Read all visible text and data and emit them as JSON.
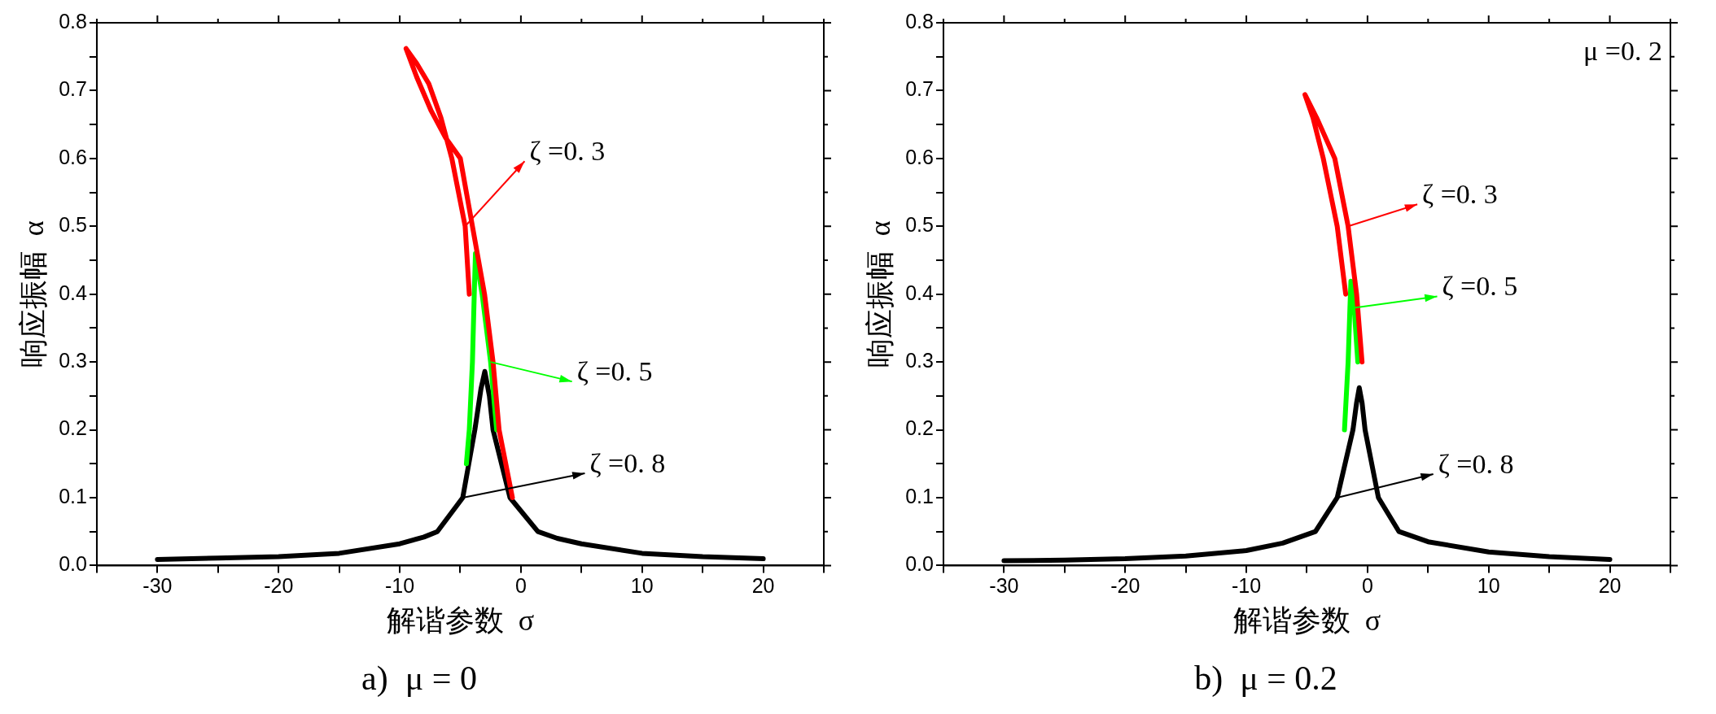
{
  "chart_data": [
    {
      "type": "line",
      "title": "a)  μ = 0",
      "xlabel": "解谐参数  σ",
      "ylabel": "响应振幅  α",
      "xlim": [
        -35,
        25
      ],
      "xticks": [
        {
          "value": -35,
          "label": null
        },
        -30,
        {
          "value": -25,
          "label": null
        },
        -20,
        {
          "value": -15,
          "label": null
        },
        -10,
        {
          "value": -5,
          "label": null
        },
        0,
        {
          "value": 5,
          "label": null
        },
        10,
        {
          "value": 15,
          "label": null
        },
        20,
        {
          "value": 25,
          "label": null
        }
      ],
      "ylim": [
        0,
        0.8
      ],
      "yticks": [
        {
          "value": 0,
          "label": "0.0"
        },
        {
          "value": 0.05,
          "label": null
        },
        0.1,
        {
          "value": 0.15,
          "label": null
        },
        0.2,
        {
          "value": 0.25,
          "label": null
        },
        0.3,
        {
          "value": 0.35,
          "label": null
        },
        0.4,
        {
          "value": 0.45,
          "label": null
        },
        0.5,
        {
          "value": 0.55,
          "label": null
        },
        0.6,
        {
          "value": 0.65,
          "label": null
        },
        0.7,
        {
          "value": 0.75,
          "label": null
        },
        0.8
      ],
      "grid": false,
      "legend": false,
      "marker": "none",
      "line_style": "solid",
      "series": [
        {
          "color": "#ff0000",
          "x": [
            -4.26,
            -4.6,
            -5.7,
            -6.6,
            -7.6,
            -8.6,
            -9.48,
            -8.6,
            -7.4,
            -6.2,
            -5.0,
            -4.0,
            -3.0,
            -2.3,
            -1.8,
            -0.7
          ],
          "values": [
            0.4,
            0.5,
            0.6,
            0.66,
            0.71,
            0.74,
            0.762,
            0.72,
            0.67,
            0.63,
            0.6,
            0.5,
            0.4,
            0.3,
            0.2,
            0.1
          ]
        },
        {
          "color": "#00ff00",
          "x": [
            -4.5,
            -4.26,
            -4.0,
            -3.85,
            -3.75,
            -3.2,
            -2.5,
            -2.0
          ],
          "values": [
            0.15,
            0.2,
            0.3,
            0.4,
            0.46,
            0.4,
            0.3,
            0.2
          ]
        },
        {
          "color": "#000000",
          "x": [
            -30,
            -25,
            -20,
            -15,
            -10,
            -8,
            -6.9,
            -4.8,
            -3.8,
            -3.3,
            -2.98,
            -2.6,
            -2.3,
            -0.9,
            1.4,
            3,
            5,
            10,
            15,
            20
          ],
          "values": [
            0.009,
            0.011,
            0.013,
            0.018,
            0.032,
            0.042,
            0.05,
            0.1,
            0.2,
            0.26,
            0.286,
            0.25,
            0.2,
            0.1,
            0.05,
            0.04,
            0.032,
            0.018,
            0.013,
            0.01
          ]
        }
      ],
      "annotations": [
        {
          "text": "ζ =0. 3",
          "x": -4.6,
          "y": 0.5
        },
        {
          "text": "ζ =0. 5",
          "x": -2.5,
          "y": 0.3
        },
        {
          "text": "ζ =0. 8",
          "x": -4.8,
          "y": 0.1
        }
      ]
    },
    {
      "type": "line",
      "title": "b)  μ = 0.2",
      "xlabel": "解谐参数  σ",
      "ylabel": "响应振幅  α",
      "xlim": [
        -35,
        25
      ],
      "xticks": [
        {
          "value": -35,
          "label": null
        },
        -30,
        {
          "value": -25,
          "label": null
        },
        -20,
        {
          "value": -15,
          "label": null
        },
        -10,
        {
          "value": -5,
          "label": null
        },
        0,
        {
          "value": 5,
          "label": null
        },
        10,
        {
          "value": 15,
          "label": null
        },
        20,
        {
          "value": 25,
          "label": null
        }
      ],
      "ylim": [
        0,
        0.8
      ],
      "yticks": [
        {
          "value": 0,
          "label": "0.0"
        },
        {
          "value": 0.05,
          "label": null
        },
        0.1,
        {
          "value": 0.15,
          "label": null
        },
        0.2,
        {
          "value": 0.25,
          "label": null
        },
        0.3,
        {
          "value": 0.35,
          "label": null
        },
        0.4,
        {
          "value": 0.45,
          "label": null
        },
        0.5,
        {
          "value": 0.55,
          "label": null
        },
        0.6,
        {
          "value": 0.65,
          "label": null
        },
        0.7,
        {
          "value": 0.75,
          "label": null
        },
        0.8
      ],
      "grid": false,
      "legend": false,
      "marker": "none",
      "line_style": "solid",
      "series": [
        {
          "color": "#ff0000",
          "x": [
            -1.8,
            -2.5,
            -3.65,
            -4.5,
            -5.16,
            -4.2,
            -2.7,
            -1.6,
            -0.9,
            -0.45
          ],
          "values": [
            0.4,
            0.5,
            0.6,
            0.66,
            0.694,
            0.66,
            0.6,
            0.5,
            0.4,
            0.3
          ]
        },
        {
          "color": "#00ff00",
          "x": [
            -1.9,
            -1.6,
            -1.45,
            -1.37,
            -1.1,
            -0.8
          ],
          "values": [
            0.2,
            0.3,
            0.38,
            0.419,
            0.38,
            0.3
          ]
        },
        {
          "color": "#000000",
          "x": [
            -30,
            -25,
            -20,
            -15,
            -10,
            -7,
            -4.3,
            -2.5,
            -1.2,
            -0.9,
            -0.68,
            -0.45,
            -0.2,
            0.9,
            2.6,
            5,
            10,
            15,
            20
          ],
          "values": [
            0.007,
            0.008,
            0.01,
            0.014,
            0.022,
            0.033,
            0.05,
            0.1,
            0.2,
            0.24,
            0.262,
            0.24,
            0.2,
            0.1,
            0.05,
            0.035,
            0.02,
            0.013,
            0.009
          ]
        }
      ],
      "annotations": [
        {
          "text": "ζ =0. 3",
          "x": -1.6,
          "y": 0.5
        },
        {
          "text": "ζ =0. 5",
          "x": -1.1,
          "y": 0.38
        },
        {
          "text": "ζ =0. 8",
          "x": -2.5,
          "y": 0.1
        },
        "μ =0. 2"
      ]
    }
  ]
}
